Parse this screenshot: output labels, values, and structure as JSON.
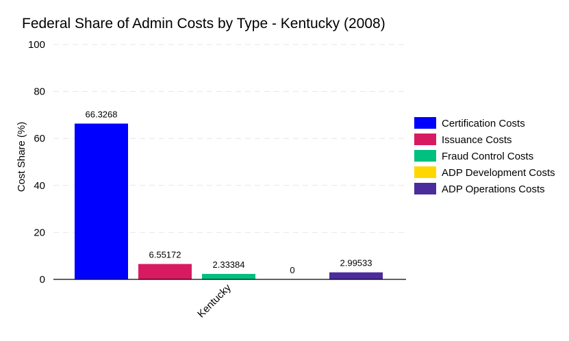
{
  "chart_data": {
    "type": "bar",
    "title": "Federal Share of Admin Costs by Type - Kentucky (2008)",
    "xlabel": "",
    "ylabel": "Cost Share (%)",
    "categories": [
      "Kentucky"
    ],
    "ylim": [
      0,
      100
    ],
    "yticks": [
      "0",
      "20",
      "40",
      "60",
      "80",
      "100"
    ],
    "grid": true,
    "legend_position": "right",
    "series": [
      {
        "name": "Certification Costs",
        "values": [
          66.3268
        ],
        "label": "66.3268",
        "color": "#0000FF"
      },
      {
        "name": "Issuance Costs",
        "values": [
          6.55172
        ],
        "label": "6.55172",
        "color": "#D81B60"
      },
      {
        "name": "Fraud Control Costs",
        "values": [
          2.33384
        ],
        "label": "2.33384",
        "color": "#00C080"
      },
      {
        "name": "ADP Development Costs",
        "values": [
          0
        ],
        "label": "0",
        "color": "#FFD700"
      },
      {
        "name": "ADP Operations Costs",
        "values": [
          2.99533
        ],
        "label": "2.99533",
        "color": "#4B2C9B"
      }
    ]
  }
}
